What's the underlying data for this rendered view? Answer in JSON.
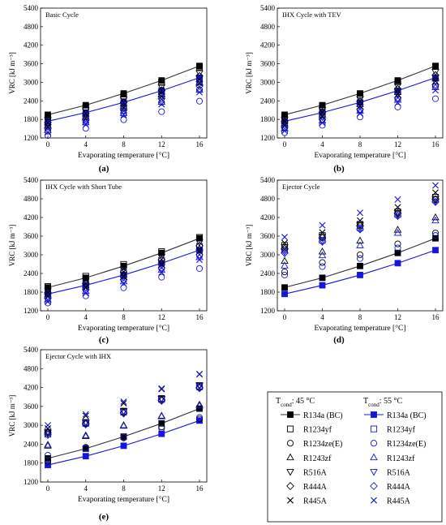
{
  "figure": {
    "legend": {
      "header_45": "T",
      "header_45_sub": "cond",
      "header_45_value": ": 45 °C",
      "header_55": "T",
      "header_55_sub": "cond",
      "header_55_value": ": 55 °C",
      "entries": [
        {
          "key": "R134a",
          "label_45": "R134a (BC)",
          "label_55": "R134a (BC)",
          "marker": "square-filled-line"
        },
        {
          "key": "R1234yf",
          "label_45": "R1234yf",
          "label_55": "R1234yf",
          "marker": "square"
        },
        {
          "key": "R1234zeE",
          "label_45": "R1234ze(E)",
          "label_55": "R1234ze(E)",
          "marker": "circle"
        },
        {
          "key": "R1243zf",
          "label_45": "R1243zf",
          "label_55": "R1243zf",
          "marker": "triangle-up"
        },
        {
          "key": "R516A",
          "label_45": "R516A",
          "label_55": "R516A",
          "marker": "triangle-down"
        },
        {
          "key": "R444A",
          "label_45": "R444A",
          "label_55": "R444A",
          "marker": "diamond"
        },
        {
          "key": "R445A",
          "label_45": "R445A",
          "label_55": "R445A",
          "marker": "x"
        }
      ]
    },
    "colors": {
      "t45": "#000000",
      "t55": "#1515e0",
      "line45": "#333333"
    }
  },
  "chart_data": [
    {
      "id": "a",
      "type": "scatter",
      "title": "Basic Cycle",
      "panel_label": "(a)",
      "xlabel": "Evaporating temperature [°C]",
      "ylabel": "VRC [kJ m⁻³]",
      "x": [
        0,
        4,
        8,
        12,
        16
      ],
      "ylim": [
        1200,
        5400
      ],
      "yticks": [
        1200,
        1800,
        2400,
        3000,
        3600,
        4200,
        4800,
        5400
      ],
      "series": [
        {
          "refrigerant": "R134a",
          "tcond": 45,
          "values": [
            1950,
            2260,
            2640,
            3060,
            3530
          ]
        },
        {
          "refrigerant": "R134a",
          "tcond": 55,
          "values": [
            1740,
            2020,
            2350,
            2730,
            3150
          ]
        },
        {
          "refrigerant": "R1234yf",
          "tcond": 45,
          "values": [
            1880,
            2200,
            2560,
            3000,
            3500
          ]
        },
        {
          "refrigerant": "R1234yf",
          "tcond": 55,
          "values": [
            1620,
            1900,
            2240,
            2620,
            3080
          ]
        },
        {
          "refrigerant": "R1234zeE",
          "tcond": 45,
          "values": [
            1420,
            1700,
            2000,
            2350,
            2760
          ]
        },
        {
          "refrigerant": "R1234zeE",
          "tcond": 55,
          "values": [
            1280,
            1510,
            1790,
            2050,
            2390
          ]
        },
        {
          "refrigerant": "R1243zf",
          "tcond": 45,
          "values": [
            1600,
            1880,
            2220,
            2600,
            3000
          ]
        },
        {
          "refrigerant": "R1243zf",
          "tcond": 55,
          "values": [
            1440,
            1700,
            2000,
            2360,
            2750
          ]
        },
        {
          "refrigerant": "R516A",
          "tcond": 45,
          "values": [
            1780,
            2090,
            2450,
            2850,
            3300
          ]
        },
        {
          "refrigerant": "R516A",
          "tcond": 55,
          "values": [
            1560,
            1830,
            2160,
            2540,
            2950
          ]
        },
        {
          "refrigerant": "R444A",
          "tcond": 45,
          "values": [
            1700,
            2000,
            2350,
            2740,
            3200
          ]
        },
        {
          "refrigerant": "R444A",
          "tcond": 55,
          "values": [
            1500,
            1780,
            2100,
            2470,
            2880
          ]
        },
        {
          "refrigerant": "R445A",
          "tcond": 45,
          "values": [
            1550,
            1840,
            2170,
            2540,
            2970
          ]
        },
        {
          "refrigerant": "R445A",
          "tcond": 55,
          "values": [
            1380,
            1630,
            1950,
            2290,
            2680
          ]
        }
      ]
    },
    {
      "id": "b",
      "type": "scatter",
      "title": "IHX Cycle with TEV",
      "panel_label": "(b)",
      "xlabel": "Evaporating temperature [°C]",
      "ylabel": "VRC [kJ m⁻³]",
      "x": [
        0,
        4,
        8,
        12,
        16
      ],
      "ylim": [
        1200,
        5400
      ],
      "yticks": [
        1200,
        1800,
        2400,
        3000,
        3600,
        4200,
        4800,
        5400
      ],
      "series": [
        {
          "refrigerant": "R134a",
          "tcond": 45,
          "values": [
            1950,
            2260,
            2640,
            3060,
            3530
          ]
        },
        {
          "refrigerant": "R134a",
          "tcond": 55,
          "values": [
            1740,
            2020,
            2350,
            2730,
            3150
          ]
        },
        {
          "refrigerant": "R1234yf",
          "tcond": 45,
          "values": [
            1900,
            2220,
            2590,
            3020,
            3510
          ]
        },
        {
          "refrigerant": "R1234yf",
          "tcond": 55,
          "values": [
            1680,
            1970,
            2310,
            2700,
            3140
          ]
        },
        {
          "refrigerant": "R1234zeE",
          "tcond": 45,
          "values": [
            1520,
            1790,
            2100,
            2460,
            2870
          ]
        },
        {
          "refrigerant": "R1234zeE",
          "tcond": 55,
          "values": [
            1370,
            1610,
            1880,
            2200,
            2470
          ]
        },
        {
          "refrigerant": "R1243zf",
          "tcond": 45,
          "values": [
            1660,
            1950,
            2290,
            2680,
            3120
          ]
        },
        {
          "refrigerant": "R1243zf",
          "tcond": 55,
          "values": [
            1500,
            1760,
            2070,
            2430,
            2840
          ]
        },
        {
          "refrigerant": "R516A",
          "tcond": 45,
          "values": [
            1800,
            2110,
            2470,
            2880,
            3340
          ]
        },
        {
          "refrigerant": "R516A",
          "tcond": 55,
          "values": [
            1600,
            1880,
            2210,
            2590,
            3020
          ]
        },
        {
          "refrigerant": "R444A",
          "tcond": 45,
          "values": [
            1730,
            2030,
            2380,
            2780,
            3230
          ]
        },
        {
          "refrigerant": "R444A",
          "tcond": 55,
          "values": [
            1540,
            1810,
            2130,
            2500,
            2920
          ]
        },
        {
          "refrigerant": "R445A",
          "tcond": 45,
          "values": [
            1600,
            1890,
            2230,
            2610,
            3040
          ]
        },
        {
          "refrigerant": "R445A",
          "tcond": 55,
          "values": [
            1430,
            1690,
            1990,
            2340,
            2740
          ]
        }
      ]
    },
    {
      "id": "c",
      "type": "scatter",
      "title": "IHX Cycle with Short Tube",
      "panel_label": "(c)",
      "xlabel": "Evaporating temperature [°C]",
      "ylabel": "VRC [kJ m⁻³]",
      "x": [
        0,
        4,
        8,
        12,
        16
      ],
      "ylim": [
        1200,
        5400
      ],
      "yticks": [
        1200,
        1800,
        2400,
        3000,
        3600,
        4200,
        4800,
        5400
      ],
      "series": [
        {
          "refrigerant": "R134a",
          "tcond": 45,
          "values": [
            1950,
            2260,
            2640,
            3060,
            3530
          ]
        },
        {
          "refrigerant": "R134a",
          "tcond": 55,
          "values": [
            1740,
            2020,
            2350,
            2730,
            3150
          ]
        },
        {
          "refrigerant": "R1234yf",
          "tcond": 45,
          "values": [
            1980,
            2310,
            2690,
            3100,
            3560
          ]
        },
        {
          "refrigerant": "R1234yf",
          "tcond": 55,
          "values": [
            1760,
            2060,
            2420,
            2820,
            3270
          ]
        },
        {
          "refrigerant": "R1234zeE",
          "tcond": 45,
          "values": [
            1600,
            1880,
            2200,
            2570,
            2990
          ]
        },
        {
          "refrigerant": "R1234zeE",
          "tcond": 55,
          "values": [
            1450,
            1680,
            1940,
            2280,
            2560
          ]
        },
        {
          "refrigerant": "R1243zf",
          "tcond": 45,
          "values": [
            1720,
            2010,
            2360,
            2760,
            3200
          ]
        },
        {
          "refrigerant": "R1243zf",
          "tcond": 55,
          "values": [
            1560,
            1830,
            2140,
            2510,
            2920
          ]
        },
        {
          "refrigerant": "R516A",
          "tcond": 45,
          "values": [
            1850,
            2160,
            2530,
            2940,
            3400
          ]
        },
        {
          "refrigerant": "R516A",
          "tcond": 55,
          "values": [
            1650,
            1930,
            2270,
            2660,
            3090
          ]
        },
        {
          "refrigerant": "R444A",
          "tcond": 45,
          "values": [
            1780,
            2080,
            2440,
            2840,
            3290
          ]
        },
        {
          "refrigerant": "R444A",
          "tcond": 55,
          "values": [
            1600,
            1880,
            2200,
            2580,
            3000
          ]
        },
        {
          "refrigerant": "R445A",
          "tcond": 45,
          "values": [
            1660,
            1950,
            2290,
            2680,
            3110
          ]
        },
        {
          "refrigerant": "R445A",
          "tcond": 55,
          "values": [
            1490,
            1760,
            2070,
            2430,
            2840
          ]
        }
      ]
    },
    {
      "id": "d",
      "type": "scatter",
      "title": "Ejector Cycle",
      "panel_label": "(d)",
      "xlabel": "Evaporating temperature [°C]",
      "ylabel": "VRC [kJ m⁻³]",
      "x": [
        0,
        4,
        8,
        12,
        16
      ],
      "ylim": [
        1200,
        5400
      ],
      "yticks": [
        1200,
        1800,
        2400,
        3000,
        3600,
        4200,
        4800,
        5400
      ],
      "series": [
        {
          "refrigerant": "R134a",
          "tcond": 45,
          "values": [
            1950,
            2260,
            2640,
            3060,
            3530
          ]
        },
        {
          "refrigerant": "R134a",
          "tcond": 55,
          "values": [
            1740,
            2020,
            2350,
            2730,
            3150
          ]
        },
        {
          "refrigerant": "R1234yf",
          "tcond": 45,
          "values": [
            3300,
            3620,
            3980,
            4380,
            4850
          ]
        },
        {
          "refrigerant": "R1234yf",
          "tcond": 55,
          "values": [
            3150,
            3470,
            3870,
            4300,
            4770
          ]
        },
        {
          "refrigerant": "R1234zeE",
          "tcond": 45,
          "values": [
            2450,
            2750,
            3000,
            3350,
            3700
          ]
        },
        {
          "refrigerant": "R1234zeE",
          "tcond": 55,
          "values": [
            2350,
            2620,
            2880,
            3220,
            3620
          ]
        },
        {
          "refrigerant": "R1243zf",
          "tcond": 45,
          "values": [
            2800,
            3100,
            3450,
            3800,
            4200
          ]
        },
        {
          "refrigerant": "R1243zf",
          "tcond": 55,
          "values": [
            2650,
            2980,
            3300,
            3700,
            4100
          ]
        },
        {
          "refrigerant": "R516A",
          "tcond": 45,
          "values": [
            3250,
            3580,
            3960,
            4350,
            4800
          ]
        },
        {
          "refrigerant": "R516A",
          "tcond": 55,
          "values": [
            3100,
            3450,
            3850,
            4270,
            4720
          ]
        },
        {
          "refrigerant": "R444A",
          "tcond": 45,
          "values": [
            3200,
            3550,
            3930,
            4330,
            4780
          ]
        },
        {
          "refrigerant": "R444A",
          "tcond": 55,
          "values": [
            3060,
            3420,
            3820,
            4250,
            4700
          ]
        },
        {
          "refrigerant": "R445A",
          "tcond": 45,
          "values": [
            3380,
            3720,
            4100,
            4530,
            5000
          ]
        },
        {
          "refrigerant": "R445A",
          "tcond": 55,
          "values": [
            3570,
            3950,
            4350,
            4780,
            5230
          ]
        }
      ]
    },
    {
      "id": "e",
      "type": "scatter",
      "title": "Ejector Cycle with IHX",
      "panel_label": "(e)",
      "xlabel": "Evaporating temperature [°C]",
      "ylabel": "VRC [kJ m⁻³]",
      "x": [
        0,
        4,
        8,
        12,
        16
      ],
      "ylim": [
        1200,
        5400
      ],
      "yticks": [
        1200,
        1800,
        2400,
        3000,
        3600,
        4200,
        4800,
        5400
      ],
      "series": [
        {
          "refrigerant": "R134a",
          "tcond": 45,
          "values": [
            1950,
            2260,
            2640,
            3060,
            3530
          ]
        },
        {
          "refrigerant": "R134a",
          "tcond": 55,
          "values": [
            1740,
            2020,
            2350,
            2730,
            3150
          ]
        },
        {
          "refrigerant": "R1234yf",
          "tcond": 45,
          "values": [
            2780,
            3090,
            3450,
            3850,
            4250
          ]
        },
        {
          "refrigerant": "R1234yf",
          "tcond": 55,
          "values": [
            2720,
            3060,
            3420,
            3820,
            4220
          ]
        },
        {
          "refrigerant": "R1234zeE",
          "tcond": 45,
          "values": [
            1850,
            2300,
            2600,
            2950,
            3200
          ]
        },
        {
          "refrigerant": "R1234zeE",
          "tcond": 55,
          "values": [
            2050,
            2280,
            2620,
            2900,
            3250
          ]
        },
        {
          "refrigerant": "R1243zf",
          "tcond": 45,
          "values": [
            2350,
            2650,
            3000,
            3300,
            3650
          ]
        },
        {
          "refrigerant": "R1243zf",
          "tcond": 55,
          "values": [
            2380,
            2680,
            2980,
            3280,
            3620
          ]
        },
        {
          "refrigerant": "R516A",
          "tcond": 45,
          "values": [
            2800,
            3100,
            3450,
            3850,
            4280
          ]
        },
        {
          "refrigerant": "R516A",
          "tcond": 55,
          "values": [
            2750,
            3080,
            3430,
            3830,
            4250
          ]
        },
        {
          "refrigerant": "R444A",
          "tcond": 45,
          "values": [
            2760,
            3060,
            3400,
            3800,
            4200
          ]
        },
        {
          "refrigerant": "R444A",
          "tcond": 55,
          "values": [
            2700,
            3030,
            3380,
            3780,
            4180
          ]
        },
        {
          "refrigerant": "R445A",
          "tcond": 45,
          "values": [
            2900,
            3300,
            3700,
            4150,
            4620
          ]
        },
        {
          "refrigerant": "R445A",
          "tcond": 55,
          "values": [
            3000,
            3350,
            3750,
            4170,
            4630
          ]
        }
      ]
    }
  ]
}
